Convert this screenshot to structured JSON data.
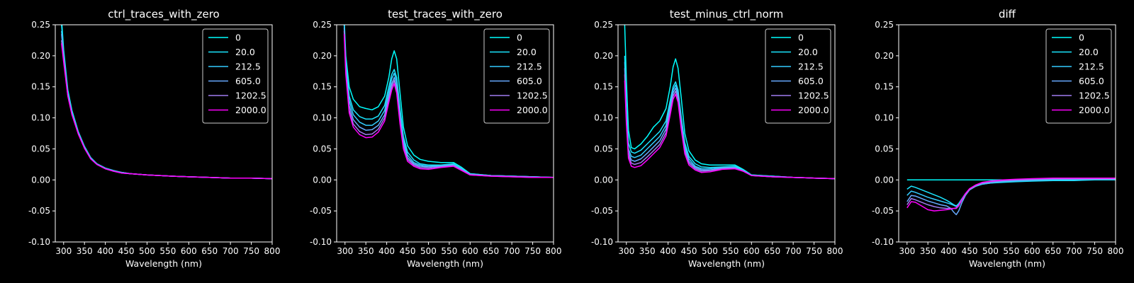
{
  "colors": {
    "background": "#000000",
    "foreground": "#ffffff",
    "series": [
      "#00ffff",
      "#1ae5ff",
      "#33ccff",
      "#66aaff",
      "#a07cf0",
      "#ff00ff"
    ]
  },
  "chart_data": [
    {
      "type": "line",
      "title": "ctrl_traces_with_zero",
      "xlabel": "Wavelength (nm)",
      "ylabel": "",
      "xlim": [
        280,
        800
      ],
      "ylim": [
        -0.1,
        0.25
      ],
      "xticks": [
        300,
        350,
        400,
        450,
        500,
        550,
        600,
        650,
        700,
        750,
        800
      ],
      "yticks": [
        -0.1,
        -0.05,
        0.0,
        0.05,
        0.1,
        0.15,
        0.2,
        0.25
      ],
      "legend": "upper-right",
      "x": [
        295,
        300,
        310,
        320,
        335,
        350,
        365,
        380,
        400,
        420,
        440,
        460,
        480,
        500,
        530,
        560,
        600,
        650,
        700,
        750,
        800
      ],
      "series": [
        {
          "name": "0",
          "values": [
            0.26,
            0.21,
            0.145,
            0.112,
            0.078,
            0.054,
            0.036,
            0.026,
            0.019,
            0.015,
            0.012,
            0.01,
            0.009,
            0.008,
            0.007,
            0.006,
            0.005,
            0.004,
            0.003,
            0.003,
            0.002
          ]
        },
        {
          "name": "20.0",
          "values": [
            0.25,
            0.205,
            0.142,
            0.11,
            0.077,
            0.053,
            0.035,
            0.026,
            0.019,
            0.015,
            0.012,
            0.01,
            0.009,
            0.008,
            0.007,
            0.006,
            0.005,
            0.004,
            0.003,
            0.003,
            0.002
          ]
        },
        {
          "name": "212.5",
          "values": [
            0.24,
            0.2,
            0.14,
            0.108,
            0.076,
            0.052,
            0.035,
            0.025,
            0.018,
            0.014,
            0.012,
            0.01,
            0.009,
            0.008,
            0.007,
            0.006,
            0.005,
            0.004,
            0.003,
            0.003,
            0.002
          ]
        },
        {
          "name": "605.0",
          "values": [
            0.235,
            0.198,
            0.138,
            0.107,
            0.075,
            0.052,
            0.034,
            0.025,
            0.018,
            0.014,
            0.011,
            0.01,
            0.009,
            0.008,
            0.007,
            0.006,
            0.005,
            0.004,
            0.003,
            0.003,
            0.002
          ]
        },
        {
          "name": "1202.5",
          "values": [
            0.225,
            0.195,
            0.136,
            0.106,
            0.075,
            0.051,
            0.034,
            0.025,
            0.018,
            0.014,
            0.011,
            0.01,
            0.009,
            0.008,
            0.007,
            0.006,
            0.005,
            0.004,
            0.003,
            0.003,
            0.002
          ]
        },
        {
          "name": "2000.0",
          "values": [
            0.22,
            0.19,
            0.135,
            0.105,
            0.074,
            0.051,
            0.034,
            0.025,
            0.018,
            0.014,
            0.011,
            0.01,
            0.009,
            0.008,
            0.007,
            0.006,
            0.005,
            0.004,
            0.003,
            0.003,
            0.002
          ]
        }
      ]
    },
    {
      "type": "line",
      "title": "test_traces_with_zero",
      "xlabel": "Wavelength (nm)",
      "ylabel": "",
      "xlim": [
        280,
        800
      ],
      "ylim": [
        -0.1,
        0.25
      ],
      "xticks": [
        300,
        350,
        400,
        450,
        500,
        550,
        600,
        650,
        700,
        750,
        800
      ],
      "yticks": [
        -0.1,
        -0.05,
        0.0,
        0.05,
        0.1,
        0.15,
        0.2,
        0.25
      ],
      "legend": "upper-right",
      "x": [
        298,
        302,
        310,
        320,
        335,
        350,
        365,
        380,
        395,
        405,
        412,
        418,
        424,
        432,
        440,
        450,
        465,
        480,
        500,
        530,
        560,
        580,
        600,
        650,
        700,
        750,
        800
      ],
      "series": [
        {
          "name": "0",
          "values": [
            0.26,
            0.2,
            0.15,
            0.13,
            0.118,
            0.115,
            0.113,
            0.118,
            0.135,
            0.165,
            0.195,
            0.208,
            0.195,
            0.14,
            0.085,
            0.055,
            0.04,
            0.033,
            0.03,
            0.028,
            0.028,
            0.02,
            0.01,
            0.007,
            0.006,
            0.005,
            0.004
          ]
        },
        {
          "name": "20.0",
          "values": [
            0.25,
            0.19,
            0.135,
            0.113,
            0.102,
            0.098,
            0.098,
            0.103,
            0.12,
            0.15,
            0.17,
            0.178,
            0.165,
            0.115,
            0.07,
            0.045,
            0.032,
            0.026,
            0.024,
            0.024,
            0.026,
            0.018,
            0.01,
            0.007,
            0.006,
            0.005,
            0.004
          ]
        },
        {
          "name": "212.5",
          "values": [
            0.25,
            0.185,
            0.128,
            0.105,
            0.093,
            0.088,
            0.088,
            0.095,
            0.112,
            0.142,
            0.163,
            0.172,
            0.158,
            0.108,
            0.065,
            0.04,
            0.028,
            0.024,
            0.022,
            0.023,
            0.025,
            0.018,
            0.009,
            0.007,
            0.006,
            0.005,
            0.004
          ]
        },
        {
          "name": "605.0",
          "values": [
            0.245,
            0.18,
            0.12,
            0.097,
            0.085,
            0.08,
            0.081,
            0.088,
            0.105,
            0.135,
            0.155,
            0.165,
            0.15,
            0.1,
            0.06,
            0.036,
            0.026,
            0.022,
            0.021,
            0.022,
            0.024,
            0.017,
            0.009,
            0.007,
            0.006,
            0.005,
            0.004
          ]
        },
        {
          "name": "1202.5",
          "values": [
            0.24,
            0.175,
            0.113,
            0.09,
            0.078,
            0.073,
            0.074,
            0.082,
            0.1,
            0.13,
            0.15,
            0.16,
            0.145,
            0.095,
            0.055,
            0.033,
            0.024,
            0.02,
            0.019,
            0.021,
            0.023,
            0.016,
            0.008,
            0.006,
            0.005,
            0.004,
            0.004
          ]
        },
        {
          "name": "2000.0",
          "values": [
            0.235,
            0.17,
            0.108,
            0.085,
            0.073,
            0.068,
            0.069,
            0.077,
            0.095,
            0.125,
            0.145,
            0.155,
            0.14,
            0.09,
            0.05,
            0.03,
            0.022,
            0.018,
            0.017,
            0.02,
            0.022,
            0.015,
            0.008,
            0.006,
            0.005,
            0.004,
            0.004
          ]
        }
      ]
    },
    {
      "type": "line",
      "title": "test_minus_ctrl_norm",
      "xlabel": "Wavelength (nm)",
      "ylabel": "",
      "xlim": [
        280,
        800
      ],
      "ylim": [
        -0.1,
        0.25
      ],
      "xticks": [
        300,
        350,
        400,
        450,
        500,
        550,
        600,
        650,
        700,
        750,
        800
      ],
      "yticks": [
        -0.1,
        -0.05,
        0.0,
        0.05,
        0.1,
        0.15,
        0.2,
        0.25
      ],
      "legend": "upper-right",
      "x": [
        296,
        300,
        305,
        312,
        320,
        335,
        350,
        365,
        380,
        395,
        405,
        412,
        418,
        424,
        432,
        440,
        450,
        465,
        480,
        500,
        530,
        560,
        580,
        600,
        650,
        700,
        750,
        800
      ],
      "series": [
        {
          "name": "0",
          "values": [
            0.25,
            0.16,
            0.08,
            0.052,
            0.05,
            0.058,
            0.07,
            0.085,
            0.095,
            0.115,
            0.15,
            0.182,
            0.195,
            0.18,
            0.13,
            0.075,
            0.047,
            0.032,
            0.026,
            0.024,
            0.024,
            0.024,
            0.017,
            0.008,
            0.006,
            0.004,
            0.003,
            0.002
          ]
        },
        {
          "name": "20.0",
          "values": [
            0.2,
            0.12,
            0.06,
            0.045,
            0.043,
            0.048,
            0.058,
            0.068,
            0.078,
            0.095,
            0.128,
            0.15,
            0.158,
            0.145,
            0.1,
            0.06,
            0.038,
            0.026,
            0.021,
            0.02,
            0.021,
            0.022,
            0.016,
            0.008,
            0.006,
            0.004,
            0.003,
            0.002
          ]
        },
        {
          "name": "212.5",
          "values": [
            0.19,
            0.11,
            0.05,
            0.038,
            0.036,
            0.04,
            0.05,
            0.06,
            0.07,
            0.088,
            0.122,
            0.145,
            0.153,
            0.14,
            0.095,
            0.055,
            0.034,
            0.022,
            0.018,
            0.018,
            0.02,
            0.021,
            0.015,
            0.007,
            0.006,
            0.004,
            0.003,
            0.002
          ]
        },
        {
          "name": "605.0",
          "values": [
            0.18,
            0.1,
            0.045,
            0.032,
            0.03,
            0.034,
            0.043,
            0.053,
            0.063,
            0.082,
            0.116,
            0.14,
            0.148,
            0.135,
            0.09,
            0.05,
            0.03,
            0.02,
            0.016,
            0.016,
            0.019,
            0.02,
            0.015,
            0.007,
            0.005,
            0.004,
            0.003,
            0.002
          ]
        },
        {
          "name": "1202.5",
          "values": [
            0.17,
            0.095,
            0.04,
            0.027,
            0.025,
            0.028,
            0.037,
            0.047,
            0.057,
            0.076,
            0.11,
            0.135,
            0.143,
            0.13,
            0.085,
            0.046,
            0.027,
            0.018,
            0.014,
            0.015,
            0.018,
            0.019,
            0.014,
            0.007,
            0.005,
            0.004,
            0.003,
            0.002
          ]
        },
        {
          "name": "2000.0",
          "values": [
            0.16,
            0.09,
            0.035,
            0.022,
            0.02,
            0.023,
            0.032,
            0.042,
            0.052,
            0.071,
            0.105,
            0.13,
            0.138,
            0.125,
            0.08,
            0.042,
            0.024,
            0.016,
            0.012,
            0.013,
            0.017,
            0.018,
            0.014,
            0.007,
            0.005,
            0.004,
            0.003,
            0.002
          ]
        }
      ]
    },
    {
      "type": "line",
      "title": "diff",
      "xlabel": "Wavelength (nm)",
      "ylabel": "",
      "xlim": [
        280,
        800
      ],
      "ylim": [
        -0.1,
        0.25
      ],
      "xticks": [
        300,
        350,
        400,
        450,
        500,
        550,
        600,
        650,
        700,
        750,
        800
      ],
      "yticks": [
        -0.1,
        -0.05,
        0.0,
        0.05,
        0.1,
        0.15,
        0.2,
        0.25
      ],
      "legend": "upper-right",
      "x": [
        300,
        310,
        320,
        335,
        350,
        365,
        380,
        395,
        405,
        412,
        418,
        424,
        432,
        440,
        450,
        465,
        480,
        500,
        530,
        560,
        600,
        650,
        700,
        750,
        800
      ],
      "series": [
        {
          "name": "0",
          "values": [
            0,
            0,
            0,
            0,
            0,
            0,
            0,
            0,
            0,
            0,
            0,
            0,
            0,
            0,
            0,
            0,
            0,
            0,
            0,
            0,
            0,
            0,
            0,
            0,
            0
          ]
        },
        {
          "name": "20.0",
          "values": [
            -0.015,
            -0.01,
            -0.012,
            -0.016,
            -0.02,
            -0.024,
            -0.028,
            -0.033,
            -0.037,
            -0.04,
            -0.042,
            -0.038,
            -0.03,
            -0.022,
            -0.015,
            -0.01,
            -0.007,
            -0.005,
            -0.004,
            -0.003,
            -0.002,
            -0.001,
            -0.001,
            0.0,
            0.0
          ]
        },
        {
          "name": "212.5",
          "values": [
            -0.025,
            -0.018,
            -0.02,
            -0.024,
            -0.028,
            -0.031,
            -0.034,
            -0.037,
            -0.039,
            -0.041,
            -0.043,
            -0.04,
            -0.032,
            -0.024,
            -0.016,
            -0.01,
            -0.007,
            -0.005,
            -0.003,
            -0.002,
            -0.001,
            0.0,
            0.0,
            0.001,
            0.001
          ]
        },
        {
          "name": "605.0",
          "values": [
            -0.035,
            -0.025,
            -0.026,
            -0.03,
            -0.034,
            -0.037,
            -0.04,
            -0.042,
            -0.046,
            -0.052,
            -0.056,
            -0.05,
            -0.036,
            -0.025,
            -0.016,
            -0.01,
            -0.006,
            -0.004,
            -0.002,
            -0.001,
            0.0,
            0.001,
            0.001,
            0.001,
            0.001
          ]
        },
        {
          "name": "1202.5",
          "values": [
            -0.04,
            -0.03,
            -0.032,
            -0.036,
            -0.04,
            -0.043,
            -0.045,
            -0.046,
            -0.046,
            -0.046,
            -0.046,
            -0.042,
            -0.032,
            -0.023,
            -0.015,
            -0.009,
            -0.005,
            -0.003,
            -0.001,
            0.0,
            0.001,
            0.002,
            0.002,
            0.002,
            0.002
          ]
        },
        {
          "name": "2000.0",
          "values": [
            -0.045,
            -0.035,
            -0.036,
            -0.042,
            -0.048,
            -0.05,
            -0.049,
            -0.048,
            -0.047,
            -0.046,
            -0.045,
            -0.041,
            -0.031,
            -0.022,
            -0.014,
            -0.008,
            -0.004,
            -0.002,
            0.0,
            0.001,
            0.002,
            0.003,
            0.003,
            0.003,
            0.003
          ]
        }
      ]
    }
  ]
}
